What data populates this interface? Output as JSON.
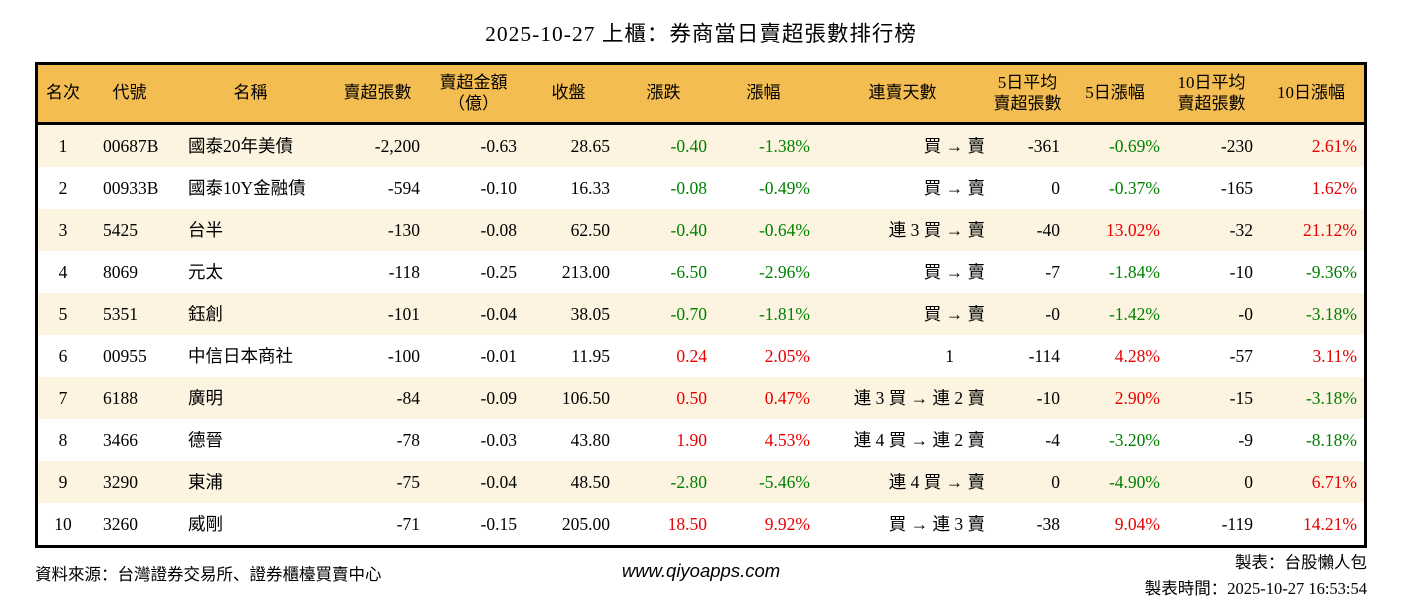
{
  "colors": {
    "header_bg": "#f3bd52",
    "row_alt_bg": "#fcf4e0",
    "up": "#e60000",
    "down": "#008000",
    "border": "#000000",
    "text": "#000000"
  },
  "chart_data": {
    "type": "table",
    "title": "2025-10-27 上櫃：券商當日賣超張數排行榜",
    "columns": [
      {
        "key": "rank",
        "label": "名次",
        "align": "center"
      },
      {
        "key": "code",
        "label": "代號",
        "align": "left"
      },
      {
        "key": "name",
        "label": "名稱",
        "align": "left"
      },
      {
        "key": "net_sell",
        "label": "賣超張數",
        "align": "right"
      },
      {
        "key": "amount",
        "label": "賣超金額\n（億）",
        "align": "right"
      },
      {
        "key": "close",
        "label": "收盤",
        "align": "right"
      },
      {
        "key": "change",
        "label": "漲跌",
        "align": "right",
        "sign_color": true
      },
      {
        "key": "change_pct",
        "label": "漲幅",
        "align": "right",
        "sign_color": true
      },
      {
        "key": "streak",
        "label": "連賣天數",
        "align": "right"
      },
      {
        "key": "avg5",
        "label": "5日平均\n賣超張數",
        "align": "right"
      },
      {
        "key": "pct5",
        "label": "5日漲幅",
        "align": "right",
        "sign_color": true
      },
      {
        "key": "avg10",
        "label": "10日平均\n賣超張數",
        "align": "right"
      },
      {
        "key": "pct10",
        "label": "10日漲幅",
        "align": "right",
        "sign_color": true
      }
    ],
    "rows": [
      {
        "rank": "1",
        "code": "00687B",
        "name": "國泰20年美債",
        "net_sell": "-2,200",
        "amount": "-0.63",
        "close": "28.65",
        "change": "-0.40",
        "change_pct": "-1.38%",
        "streak": "買 → 賣",
        "avg5": "-361",
        "pct5": "-0.69%",
        "avg10": "-230",
        "pct10": "2.61%"
      },
      {
        "rank": "2",
        "code": "00933B",
        "name": "國泰10Y金融債",
        "net_sell": "-594",
        "amount": "-0.10",
        "close": "16.33",
        "change": "-0.08",
        "change_pct": "-0.49%",
        "streak": "買 → 賣",
        "avg5": "0",
        "pct5": "-0.37%",
        "avg10": "-165",
        "pct10": "1.62%"
      },
      {
        "rank": "3",
        "code": "5425",
        "name": "台半",
        "net_sell": "-130",
        "amount": "-0.08",
        "close": "62.50",
        "change": "-0.40",
        "change_pct": "-0.64%",
        "streak": "連 3 買 → 賣",
        "avg5": "-40",
        "pct5": "13.02%",
        "avg10": "-32",
        "pct10": "21.12%"
      },
      {
        "rank": "4",
        "code": "8069",
        "name": "元太",
        "net_sell": "-118",
        "amount": "-0.25",
        "close": "213.00",
        "change": "-6.50",
        "change_pct": "-2.96%",
        "streak": "買 → 賣",
        "avg5": "-7",
        "pct5": "-1.84%",
        "avg10": "-10",
        "pct10": "-9.36%"
      },
      {
        "rank": "5",
        "code": "5351",
        "name": "鈺創",
        "net_sell": "-101",
        "amount": "-0.04",
        "close": "38.05",
        "change": "-0.70",
        "change_pct": "-1.81%",
        "streak": "買 → 賣",
        "avg5": "-0",
        "pct5": "-1.42%",
        "avg10": "-0",
        "pct10": "-3.18%"
      },
      {
        "rank": "6",
        "code": "00955",
        "name": "中信日本商社",
        "net_sell": "-100",
        "amount": "-0.01",
        "close": "11.95",
        "change": "0.24",
        "change_pct": "2.05%",
        "streak": "1",
        "avg5": "-114",
        "pct5": "4.28%",
        "avg10": "-57",
        "pct10": "3.11%"
      },
      {
        "rank": "7",
        "code": "6188",
        "name": "廣明",
        "net_sell": "-84",
        "amount": "-0.09",
        "close": "106.50",
        "change": "0.50",
        "change_pct": "0.47%",
        "streak": "連 3 買 → 連 2 賣",
        "avg5": "-10",
        "pct5": "2.90%",
        "avg10": "-15",
        "pct10": "-3.18%"
      },
      {
        "rank": "8",
        "code": "3466",
        "name": "德晉",
        "net_sell": "-78",
        "amount": "-0.03",
        "close": "43.80",
        "change": "1.90",
        "change_pct": "4.53%",
        "streak": "連 4 買 → 連 2 賣",
        "avg5": "-4",
        "pct5": "-3.20%",
        "avg10": "-9",
        "pct10": "-8.18%"
      },
      {
        "rank": "9",
        "code": "3290",
        "name": "東浦",
        "net_sell": "-75",
        "amount": "-0.04",
        "close": "48.50",
        "change": "-2.80",
        "change_pct": "-5.46%",
        "streak": "連 4 買 → 賣",
        "avg5": "0",
        "pct5": "-4.90%",
        "avg10": "0",
        "pct10": "6.71%"
      },
      {
        "rank": "10",
        "code": "3260",
        "name": "威剛",
        "net_sell": "-71",
        "amount": "-0.15",
        "close": "205.00",
        "change": "18.50",
        "change_pct": "9.92%",
        "streak": "買 → 連 3 賣",
        "avg5": "-38",
        "pct5": "9.04%",
        "avg10": "-119",
        "pct10": "14.21%"
      }
    ]
  },
  "footer": {
    "source": "資料來源：台灣證券交易所、證券櫃檯買賣中心",
    "website": "www.qiyoapps.com",
    "maker": "製表：台股懶人包",
    "made_at": "製表時間：2025-10-27 16:53:54"
  }
}
